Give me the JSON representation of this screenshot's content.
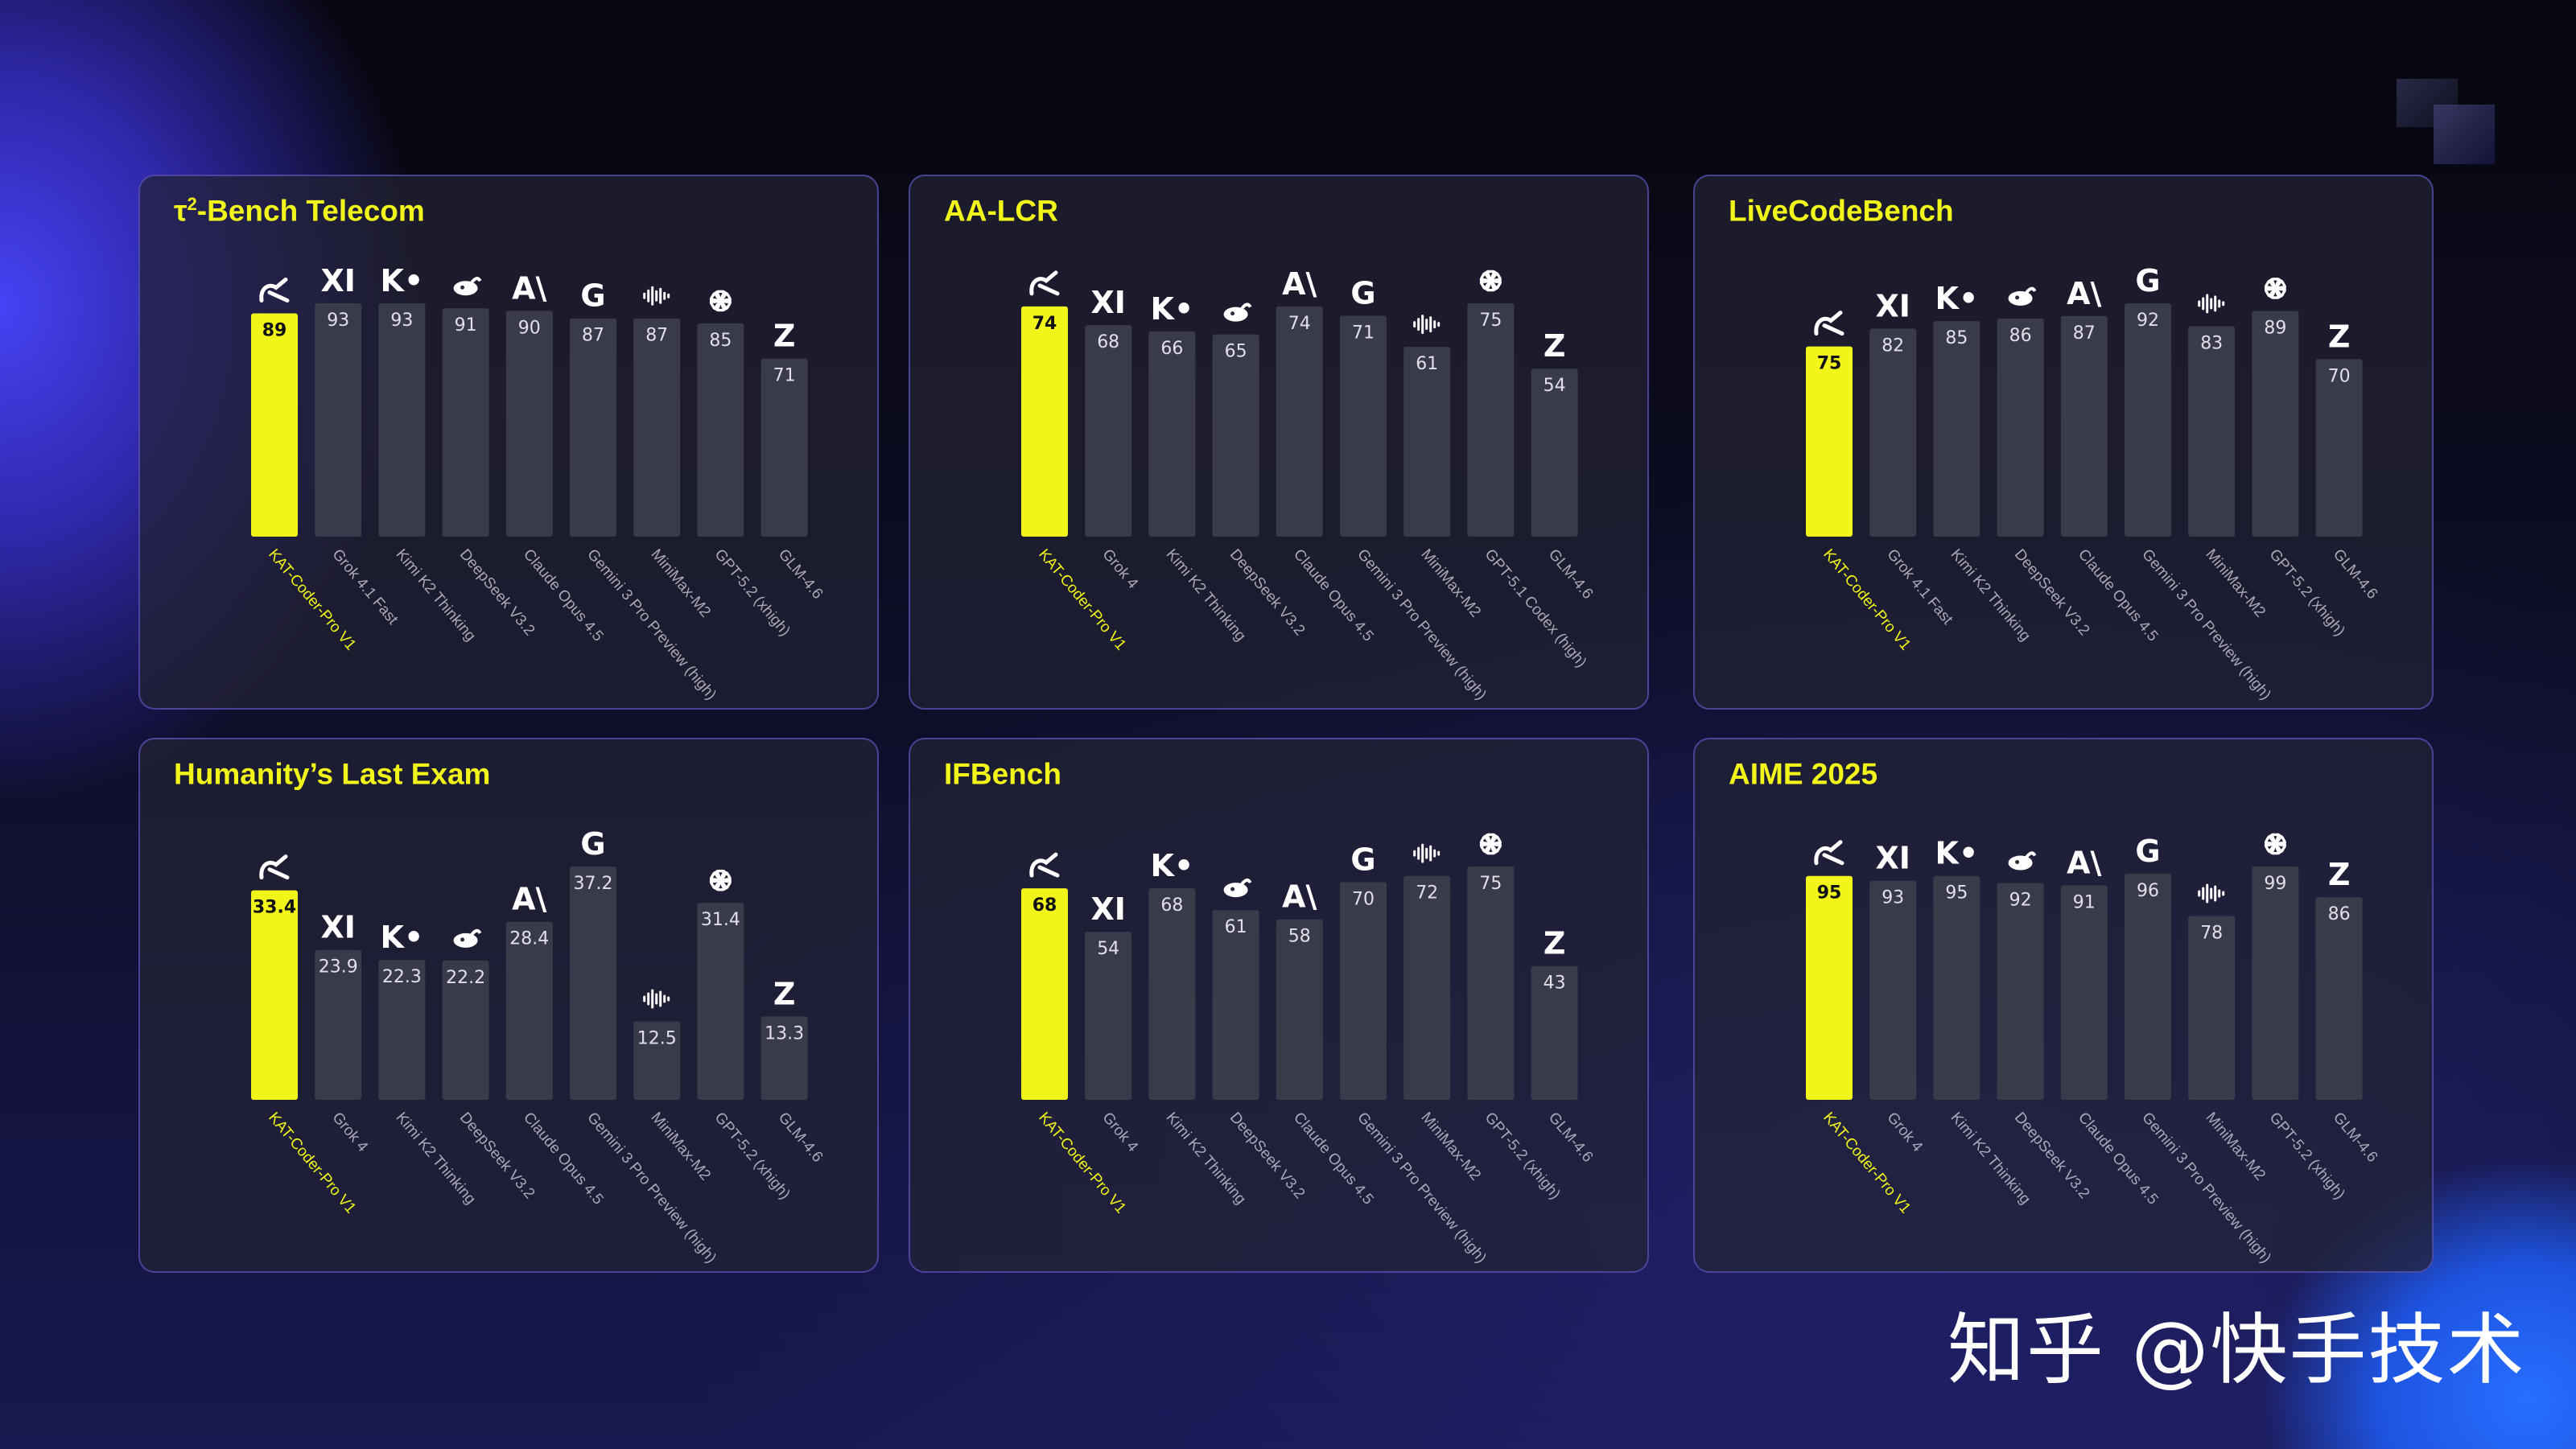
{
  "colors": {
    "highlight": "#f2f51a",
    "bar": "#3a3b4a",
    "label": "#a8a8b8",
    "value": "#e0e0e8"
  },
  "watermark": "知乎 @快手技术",
  "panels": [
    {
      "title_prefix": "τ",
      "title_sup": "2",
      "title_rest": "-Bench Telecom"
    },
    {
      "title_prefix": "AA-LCR",
      "title_sup": "",
      "title_rest": ""
    },
    {
      "title_prefix": "LiveCodeBench",
      "title_sup": "",
      "title_rest": ""
    },
    {
      "title_prefix": "Humanity’s Last Exam",
      "title_sup": "",
      "title_rest": ""
    },
    {
      "title_prefix": "IFBench",
      "title_sup": "",
      "title_rest": ""
    },
    {
      "title_prefix": "AIME 2025",
      "title_sup": "",
      "title_rest": ""
    }
  ],
  "chart_data": [
    {
      "type": "bar",
      "title": "τ2-Bench Telecom",
      "categories": [
        "KAT-Coder-Pro V1",
        "Grok 4.1 Fast",
        "Kimi K2 Thinking",
        "DeepSeek V3.2",
        "Claude Opus 4.5",
        "Gemini 3 Pro Preview (high)",
        "MiniMax-M2",
        "GPT-5.2 (xhigh)",
        "GLM-4.6"
      ],
      "values": [
        89,
        93,
        93,
        91,
        90,
        87,
        87,
        85,
        71
      ],
      "labels": [
        "89",
        "93",
        "93",
        "91",
        "90",
        "87",
        "87",
        "85",
        "71"
      ],
      "icons": [
        "kat-icon",
        "xai-icon",
        "kimi-icon",
        "deepseek-icon",
        "anthropic-icon",
        "google-icon",
        "minimax-icon",
        "openai-icon",
        "zhipu-icon"
      ],
      "highlight": 0
    },
    {
      "type": "bar",
      "title": "AA-LCR",
      "categories": [
        "KAT-Coder-Pro V1",
        "Grok 4",
        "Kimi K2 Thinking",
        "DeepSeek V3.2",
        "Claude Opus 4.5",
        "Gemini 3 Pro Preview (high)",
        "MiniMax-M2",
        "GPT-5.1 Codex (high)",
        "GLM-4.6"
      ],
      "values": [
        74,
        68,
        66,
        65,
        74,
        71,
        61,
        75,
        54
      ],
      "labels": [
        "74",
        "68",
        "66",
        "65",
        "74",
        "71",
        "61",
        "75",
        "54"
      ],
      "icons": [
        "kat-icon",
        "xai-icon",
        "kimi-icon",
        "deepseek-icon",
        "anthropic-icon",
        "google-icon",
        "minimax-icon",
        "openai-icon",
        "zhipu-icon"
      ],
      "highlight": 0
    },
    {
      "type": "bar",
      "title": "LiveCodeBench",
      "categories": [
        "KAT-Coder-Pro V1",
        "Grok 4.1 Fast",
        "Kimi K2 Thinking",
        "DeepSeek V3.2",
        "Claude Opus 4.5",
        "Gemini 3 Pro Preview (high)",
        "MiniMax-M2",
        "GPT-5.2 (xhigh)",
        "GLM-4.6"
      ],
      "values": [
        75,
        82,
        85,
        86,
        87,
        92,
        83,
        89,
        70
      ],
      "labels": [
        "75",
        "82",
        "85",
        "86",
        "87",
        "92",
        "83",
        "89",
        "70"
      ],
      "icons": [
        "kat-icon",
        "xai-icon",
        "kimi-icon",
        "deepseek-icon",
        "anthropic-icon",
        "google-icon",
        "minimax-icon",
        "openai-icon",
        "zhipu-icon"
      ],
      "highlight": 0
    },
    {
      "type": "bar",
      "title": "Humanity’s Last Exam",
      "categories": [
        "KAT-Coder-Pro V1",
        "Grok 4",
        "Kimi K2 Thinking",
        "DeepSeek V3.2",
        "Claude Opus 4.5",
        "Gemini 3 Pro Preview (high)",
        "MiniMax-M2",
        "GPT-5.2 (xhigh)",
        "GLM-4.6"
      ],
      "values": [
        33.4,
        23.9,
        22.3,
        22.2,
        28.4,
        37.2,
        12.5,
        31.4,
        13.3
      ],
      "labels": [
        "33.4",
        "23.9",
        "22.3",
        "22.2",
        "28.4",
        "37.2",
        "12.5",
        "31.4",
        "13.3"
      ],
      "icons": [
        "kat-icon",
        "xai-icon",
        "kimi-icon",
        "deepseek-icon",
        "anthropic-icon",
        "google-icon",
        "minimax-icon",
        "openai-icon",
        "zhipu-icon"
      ],
      "highlight": 0
    },
    {
      "type": "bar",
      "title": "IFBench",
      "categories": [
        "KAT-Coder-Pro V1",
        "Grok 4",
        "Kimi K2 Thinking",
        "DeepSeek V3.2",
        "Claude Opus 4.5",
        "Gemini 3 Pro Preview (high)",
        "MiniMax-M2",
        "GPT-5.2 (xhigh)",
        "GLM-4.6"
      ],
      "values": [
        68,
        54,
        68,
        61,
        58,
        70,
        72,
        75,
        43
      ],
      "labels": [
        "68",
        "54",
        "68",
        "61",
        "58",
        "70",
        "72",
        "75",
        "43"
      ],
      "icons": [
        "kat-icon",
        "xai-icon",
        "kimi-icon",
        "deepseek-icon",
        "anthropic-icon",
        "google-icon",
        "minimax-icon",
        "openai-icon",
        "zhipu-icon"
      ],
      "highlight": 0
    },
    {
      "type": "bar",
      "title": "AIME 2025",
      "categories": [
        "KAT-Coder-Pro V1",
        "Grok 4",
        "Kimi K2 Thinking",
        "DeepSeek V3.2",
        "Claude Opus 4.5",
        "Gemini 3 Pro Preview (high)",
        "MiniMax-M2",
        "GPT-5.2 (xhigh)",
        "GLM-4.6"
      ],
      "values": [
        95,
        93,
        95,
        92,
        91,
        96,
        78,
        99,
        86
      ],
      "labels": [
        "95",
        "93",
        "95",
        "92",
        "91",
        "96",
        "78",
        "99",
        "86"
      ],
      "icons": [
        "kat-icon",
        "xai-icon",
        "kimi-icon",
        "deepseek-icon",
        "anthropic-icon",
        "google-icon",
        "minimax-icon",
        "openai-icon",
        "zhipu-icon"
      ],
      "highlight": 0
    }
  ]
}
